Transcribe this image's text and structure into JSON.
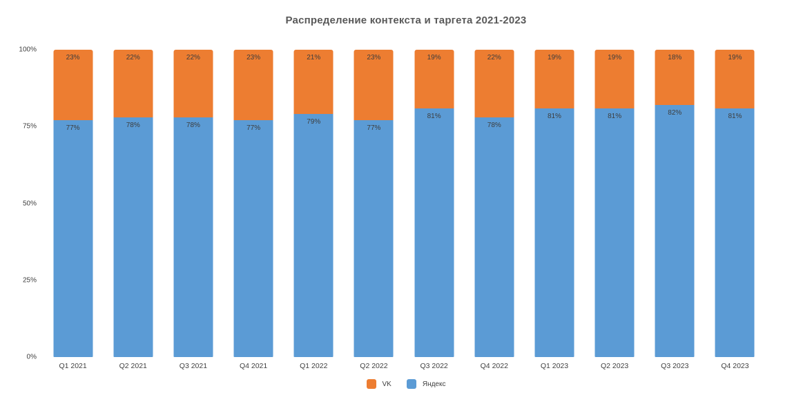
{
  "title": "Распределение контекста и таргета 2021-2023",
  "colors": {
    "vk": "#ED7D31",
    "yandex": "#5B9BD5",
    "title_text": "#595959",
    "label_text": "#404040",
    "background": "#FFFFFF"
  },
  "chart_data": {
    "type": "bar",
    "stacked": true,
    "title": "Распределение контекста и таргета 2021-2023",
    "categories": [
      "Q1 2021",
      "Q2 2021",
      "Q3 2021",
      "Q4 2021",
      "Q1 2022",
      "Q2 2022",
      "Q3 2022",
      "Q4 2022",
      "Q1 2023",
      "Q2 2023",
      "Q3 2023",
      "Q4 2023"
    ],
    "series": [
      {
        "name": "VK",
        "color": "#ED7D31",
        "position": "top",
        "values": [
          23,
          22,
          22,
          23,
          21,
          23,
          19,
          22,
          19,
          19,
          18,
          19
        ]
      },
      {
        "name": "Яндекс",
        "color": "#5B9BD5",
        "position": "bottom",
        "values": [
          77,
          78,
          78,
          77,
          79,
          77,
          81,
          78,
          81,
          81,
          82,
          81
        ]
      }
    ],
    "value_label_suffix": "%",
    "xlabel": "",
    "ylabel": "",
    "ylim": [
      0,
      100
    ],
    "y_ticks": [
      "100%",
      "75%",
      "50%",
      "25%",
      "0%"
    ],
    "grid": false,
    "legend_position": "bottom"
  },
  "legend": {
    "items": [
      {
        "label": "VK",
        "color": "#ED7D31"
      },
      {
        "label": "Яндекс",
        "color": "#5B9BD5"
      }
    ]
  }
}
